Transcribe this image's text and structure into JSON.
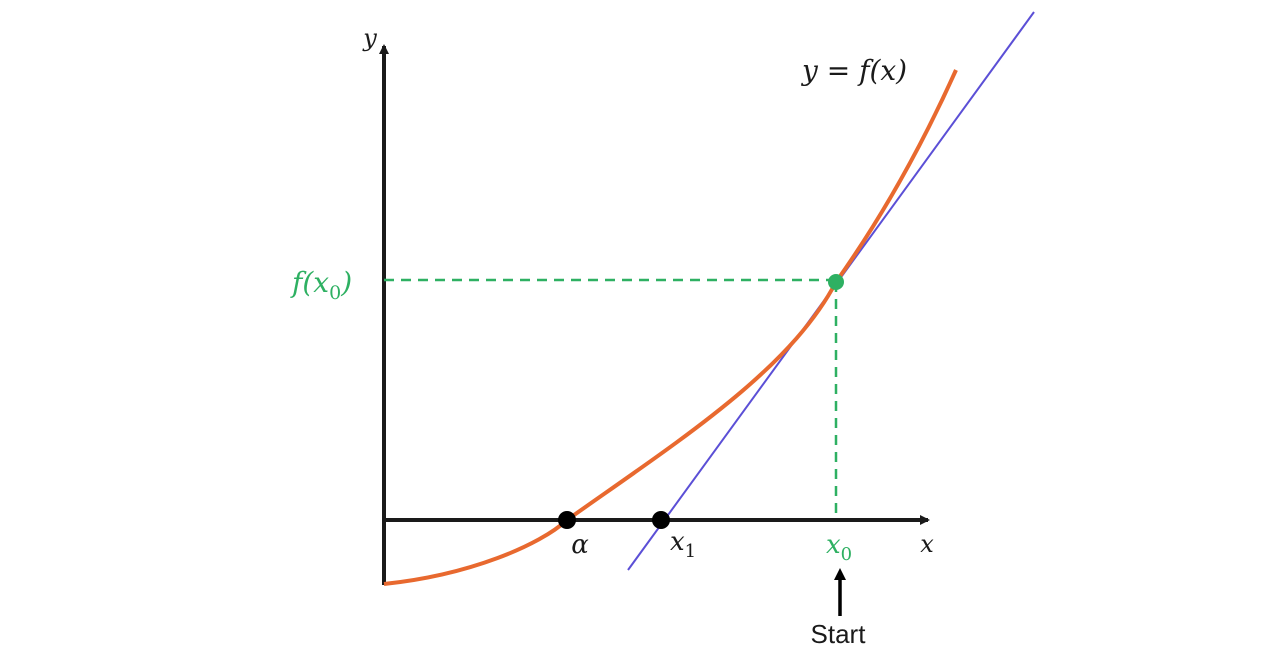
{
  "diagram": {
    "title": "",
    "axes": {
      "x_label": "x",
      "y_label": "y"
    },
    "curve": {
      "label": "y = f(x)",
      "color": "#e8692f"
    },
    "tangent": {
      "color": "#5b4fd6"
    },
    "guides": {
      "color": "#2eb062"
    },
    "points": {
      "root": {
        "label": "α",
        "color": "#000000"
      },
      "next_estimate": {
        "label": "x",
        "subscript": "1",
        "color": "#000000"
      },
      "start_point": {
        "color": "#2eb062"
      }
    },
    "x0_label": {
      "text": "x",
      "subscript": "0",
      "color": "#2eb062"
    },
    "f_x0_label": {
      "prefix": "f(",
      "var": "x",
      "subscript": "0",
      "suffix": ")",
      "color": "#2eb062"
    },
    "start_annotation": {
      "text": "Start"
    }
  }
}
